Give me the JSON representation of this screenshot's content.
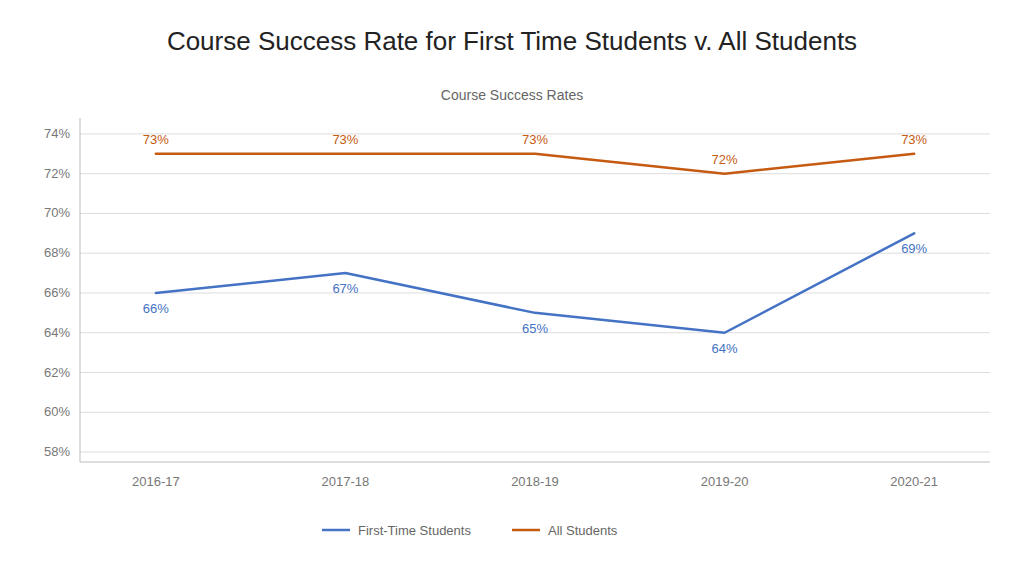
{
  "chart_data": {
    "type": "line",
    "title": "Course Success Rate for First Time Students v. All Students",
    "subtitle": "Course Success Rates",
    "categories": [
      "2016-17",
      "2017-18",
      "2018-19",
      "2019-20",
      "2020-21"
    ],
    "series": [
      {
        "name": "First-Time Students",
        "color": "#4472C4",
        "values": [
          0.66,
          0.67,
          0.65,
          0.64,
          0.69
        ],
        "value_labels": [
          "66%",
          "67%",
          "65%",
          "64%",
          "69%"
        ]
      },
      {
        "name": "All Students",
        "color": "#C55A11",
        "values": [
          0.73,
          0.73,
          0.73,
          0.72,
          0.73
        ],
        "value_labels": [
          "73%",
          "73%",
          "73%",
          "72%",
          "73%"
        ]
      }
    ],
    "ylim": [
      0.575,
      0.748
    ],
    "yticks": [
      {
        "value": 0.58,
        "label": "58%"
      },
      {
        "value": 0.6,
        "label": "60%"
      },
      {
        "value": 0.62,
        "label": "62%"
      },
      {
        "value": 0.64,
        "label": "64%"
      },
      {
        "value": 0.66,
        "label": "66%"
      },
      {
        "value": 0.68,
        "label": "68%"
      },
      {
        "value": 0.7,
        "label": "70%"
      },
      {
        "value": 0.72,
        "label": "72%"
      },
      {
        "value": 0.74,
        "label": "74%"
      }
    ],
    "grid": true,
    "legend": "bottom",
    "data_labels": true
  }
}
